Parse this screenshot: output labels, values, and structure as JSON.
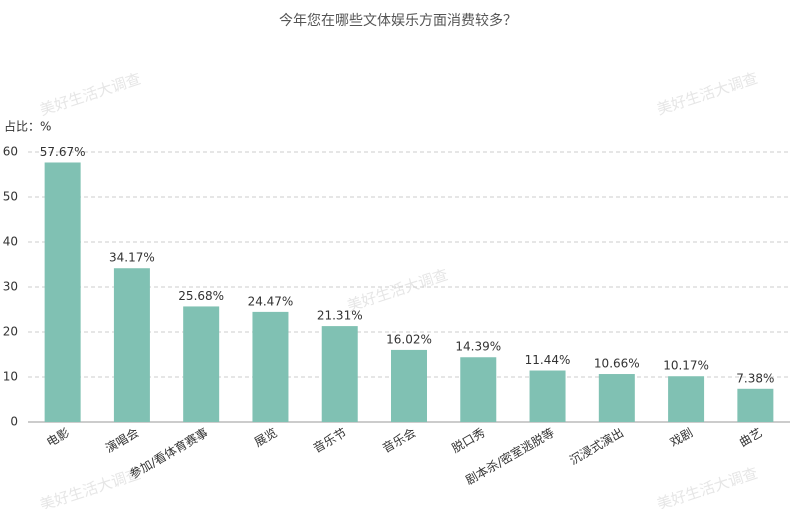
{
  "chart_data": {
    "type": "bar",
    "title": "今年您在哪些文体娱乐方面消费较多？",
    "ylabel": "占比：%",
    "watermark": "美好生活大调查",
    "categories": [
      "电影",
      "演唱会",
      "参加/看体育赛事",
      "展览",
      "音乐节",
      "音乐会",
      "脱口秀",
      "剧本杀/密室逃脱等",
      "沉浸式演出",
      "戏剧",
      "曲艺"
    ],
    "values": [
      57.67,
      34.17,
      25.68,
      24.47,
      21.31,
      16.02,
      14.39,
      11.44,
      10.66,
      10.17,
      7.38
    ],
    "value_labels": [
      "57.67%",
      "34.17%",
      "25.68%",
      "24.47%",
      "21.31%",
      "16.02%",
      "14.39%",
      "11.44%",
      "10.66%",
      "10.17%",
      "7.38%"
    ],
    "color": "#80c1b3",
    "ylim": [
      0,
      60
    ],
    "yticks": [
      0,
      10,
      20,
      30,
      40,
      50,
      60
    ],
    "grid": true
  }
}
